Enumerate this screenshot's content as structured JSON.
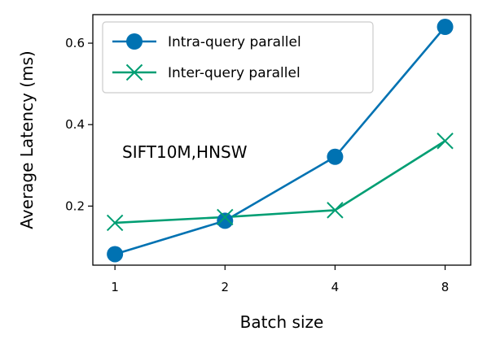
{
  "chart_data": {
    "type": "line",
    "xlabel": "Batch size",
    "ylabel": "Average Latency (ms)",
    "x_scale": "log2",
    "categories": [
      "1",
      "2",
      "4",
      "8"
    ],
    "x": [
      1,
      2,
      4,
      8
    ],
    "xlim": [
      0.87,
      9.4
    ],
    "ylim": [
      0.055,
      0.67
    ],
    "yticks": [
      0.2,
      0.4,
      0.6
    ],
    "ytick_labels": [
      "0.2",
      "0.4",
      "0.6"
    ],
    "grid": false,
    "legend_position": "top-left",
    "annotation": "SIFT10M,HNSW",
    "series": [
      {
        "name": "Intra-query parallel",
        "marker": "circle",
        "color": "#0072B2",
        "values": [
          0.082,
          0.164,
          0.321,
          0.64
        ]
      },
      {
        "name": "Inter-query parallel",
        "marker": "x",
        "color": "#009E73",
        "values": [
          0.159,
          0.173,
          0.19,
          0.36
        ]
      }
    ]
  }
}
